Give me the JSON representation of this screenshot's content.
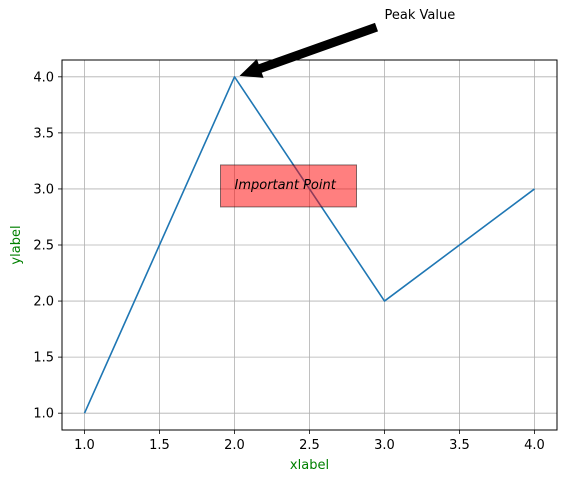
{
  "chart_data": {
    "type": "line",
    "title": "",
    "xlabel": "xlabel",
    "ylabel": "ylabel",
    "xlim": [
      0.85,
      4.15
    ],
    "ylim": [
      0.85,
      4.15
    ],
    "xticks": [
      1.0,
      1.5,
      2.0,
      2.5,
      3.0,
      3.5,
      4.0
    ],
    "yticks": [
      1.0,
      1.5,
      2.0,
      2.5,
      3.0,
      3.5,
      4.0
    ],
    "xtick_labels": [
      "1.0",
      "1.5",
      "2.0",
      "2.5",
      "3.0",
      "3.5",
      "4.0"
    ],
    "ytick_labels": [
      "1.0",
      "1.5",
      "2.0",
      "2.5",
      "3.0",
      "3.5",
      "4.0"
    ],
    "grid": true,
    "series": [
      {
        "x": [
          1,
          2,
          3,
          4
        ],
        "y": [
          1,
          4,
          2,
          3
        ],
        "color": "#1f77b4"
      }
    ],
    "annotations": [
      {
        "text": "Peak Value",
        "xy": [
          2,
          4
        ],
        "xytext": [
          3,
          4.55
        ],
        "arrow": true,
        "arrow_color": "#000000"
      },
      {
        "text": "Important Point",
        "xy": [
          2,
          3
        ],
        "style": "italic",
        "box_color": "#ff0000",
        "box_alpha": 0.5
      }
    ],
    "label_color": "#008000"
  }
}
